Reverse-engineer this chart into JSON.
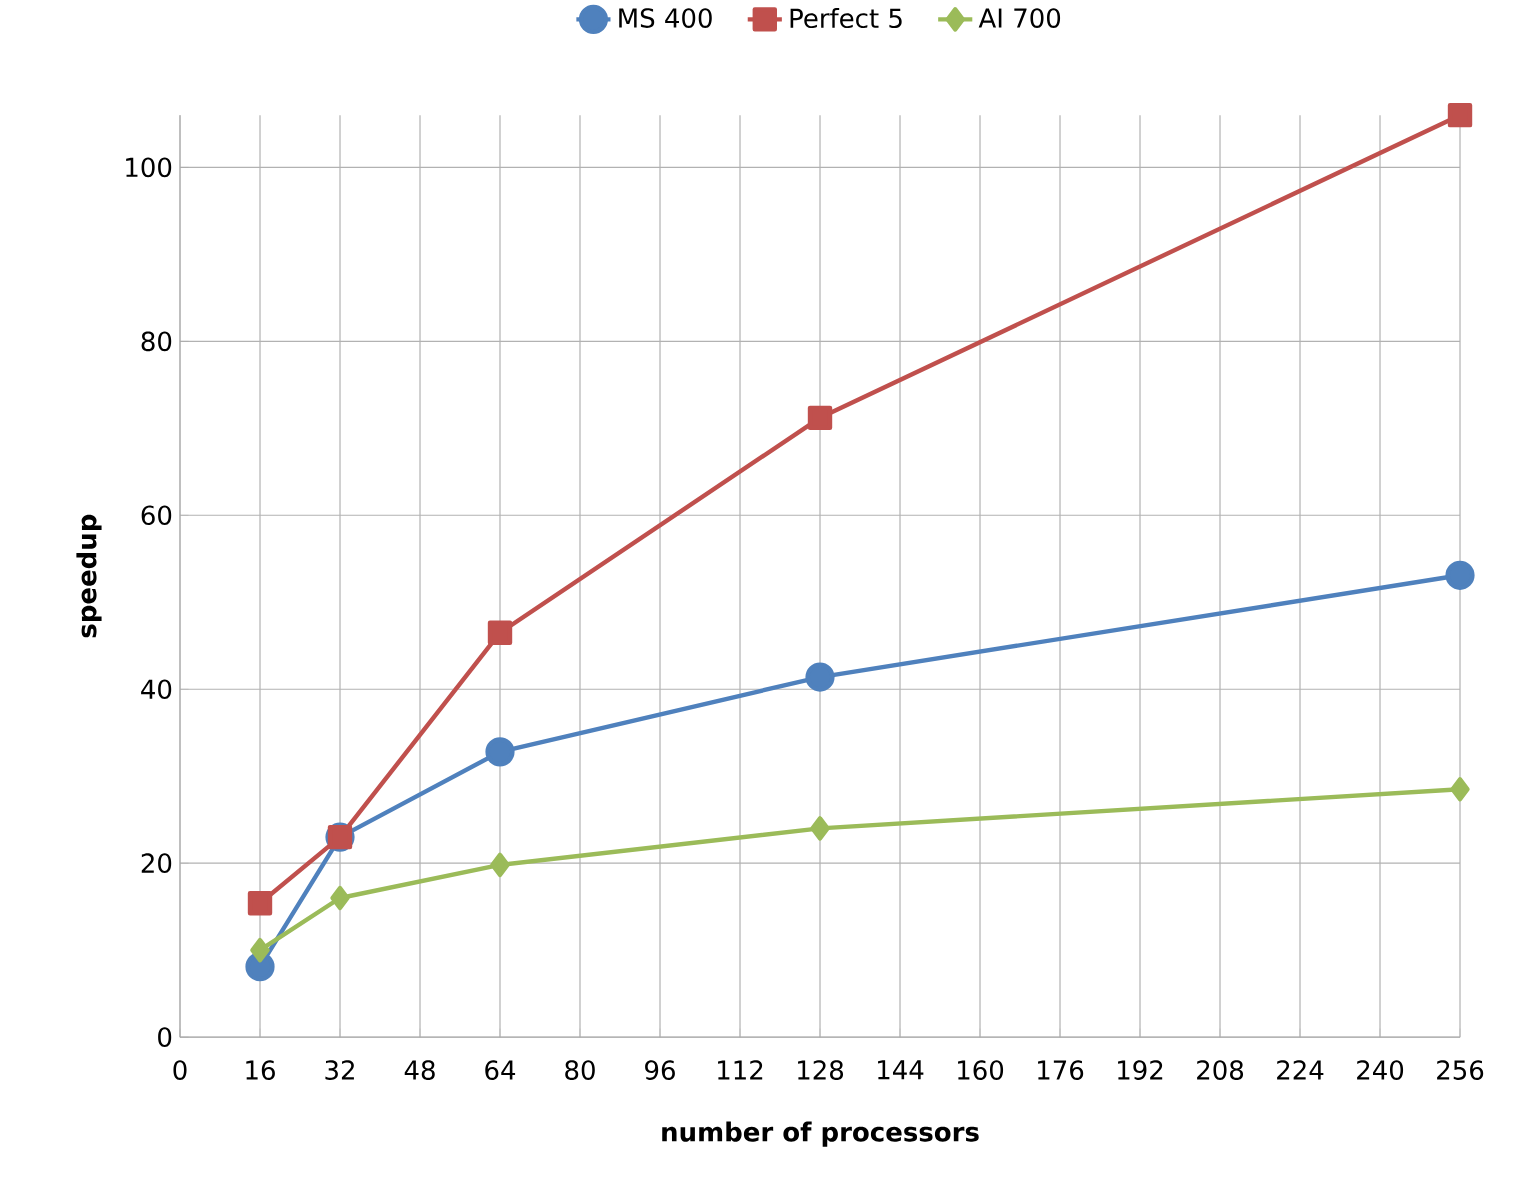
{
  "chart_data": {
    "type": "line",
    "xlabel": "number of processors",
    "ylabel": "speedup",
    "x": [
      16,
      32,
      64,
      128,
      256
    ],
    "series": [
      {
        "name": "MS 400",
        "color": "#4f81bd",
        "marker": "circle",
        "values": [
          8.1,
          23,
          32.8,
          41.4,
          53.1
        ]
      },
      {
        "name": "Perfect 5",
        "color": "#c0504d",
        "marker": "square",
        "values": [
          15.4,
          23,
          46.5,
          71.2,
          106
        ]
      },
      {
        "name": "AI 700",
        "color": "#9bbb59",
        "marker": "diamond",
        "values": [
          10,
          16,
          19.8,
          24,
          28.5
        ]
      }
    ],
    "xlim": [
      0,
      256
    ],
    "ylim": [
      0,
      106
    ],
    "xticks": [
      0,
      16,
      32,
      48,
      64,
      80,
      96,
      112,
      128,
      144,
      160,
      176,
      192,
      208,
      224,
      240,
      256
    ],
    "yticks": [
      0,
      20,
      40,
      60,
      80,
      100
    ],
    "grid": true,
    "legend": "top",
    "line_style": "solid"
  }
}
